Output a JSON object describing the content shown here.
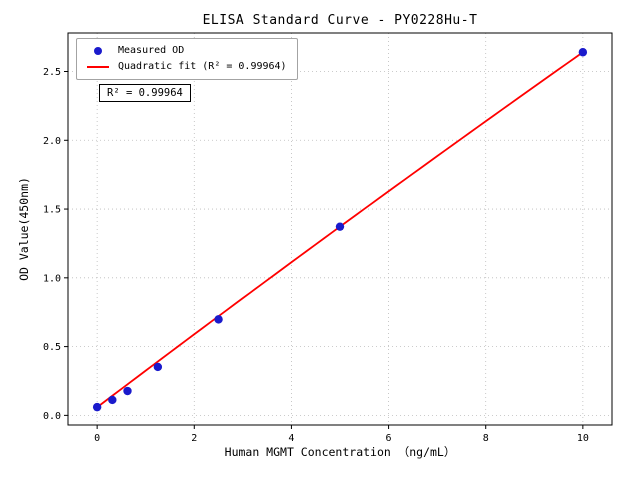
{
  "chart_data": {
    "type": "scatter",
    "title": "ELISA Standard Curve - PY0228Hu-T",
    "xlabel": "Human MGMT Concentration （ng/mL）",
    "ylabel": "OD Value(450nm)",
    "xlim": [
      -0.6,
      10.6
    ],
    "ylim": [
      -0.07,
      2.78
    ],
    "xticks": [
      0,
      2,
      4,
      6,
      8,
      10
    ],
    "xtick_labels": [
      "0",
      "2",
      "4",
      "6",
      "8",
      "10"
    ],
    "yticks": [
      0.0,
      0.5,
      1.0,
      1.5,
      2.0,
      2.5
    ],
    "ytick_labels": [
      "0.0",
      "0.5",
      "1.0",
      "1.5",
      "2.0",
      "2.5"
    ],
    "grid": true,
    "legend_position": "upper-left",
    "series": [
      {
        "name": "Measured OD",
        "type": "scatter",
        "color": "#1a1acc",
        "x": [
          0,
          0.3125,
          0.625,
          1.25,
          2.5,
          5,
          10
        ],
        "y": [
          0.06,
          0.112,
          0.177,
          0.352,
          0.698,
          1.372,
          2.64
        ]
      },
      {
        "name": "Quadratic fit (R² = 0.99964)",
        "type": "line",
        "color": "#ff0000",
        "fit": {
          "kind": "quadratic",
          "coefficients": [
            -0.0009,
            0.2671,
            0.059
          ],
          "x_range": [
            0,
            10
          ]
        }
      }
    ],
    "annotation": "R² = 0.99964",
    "r_squared": 0.99964
  }
}
